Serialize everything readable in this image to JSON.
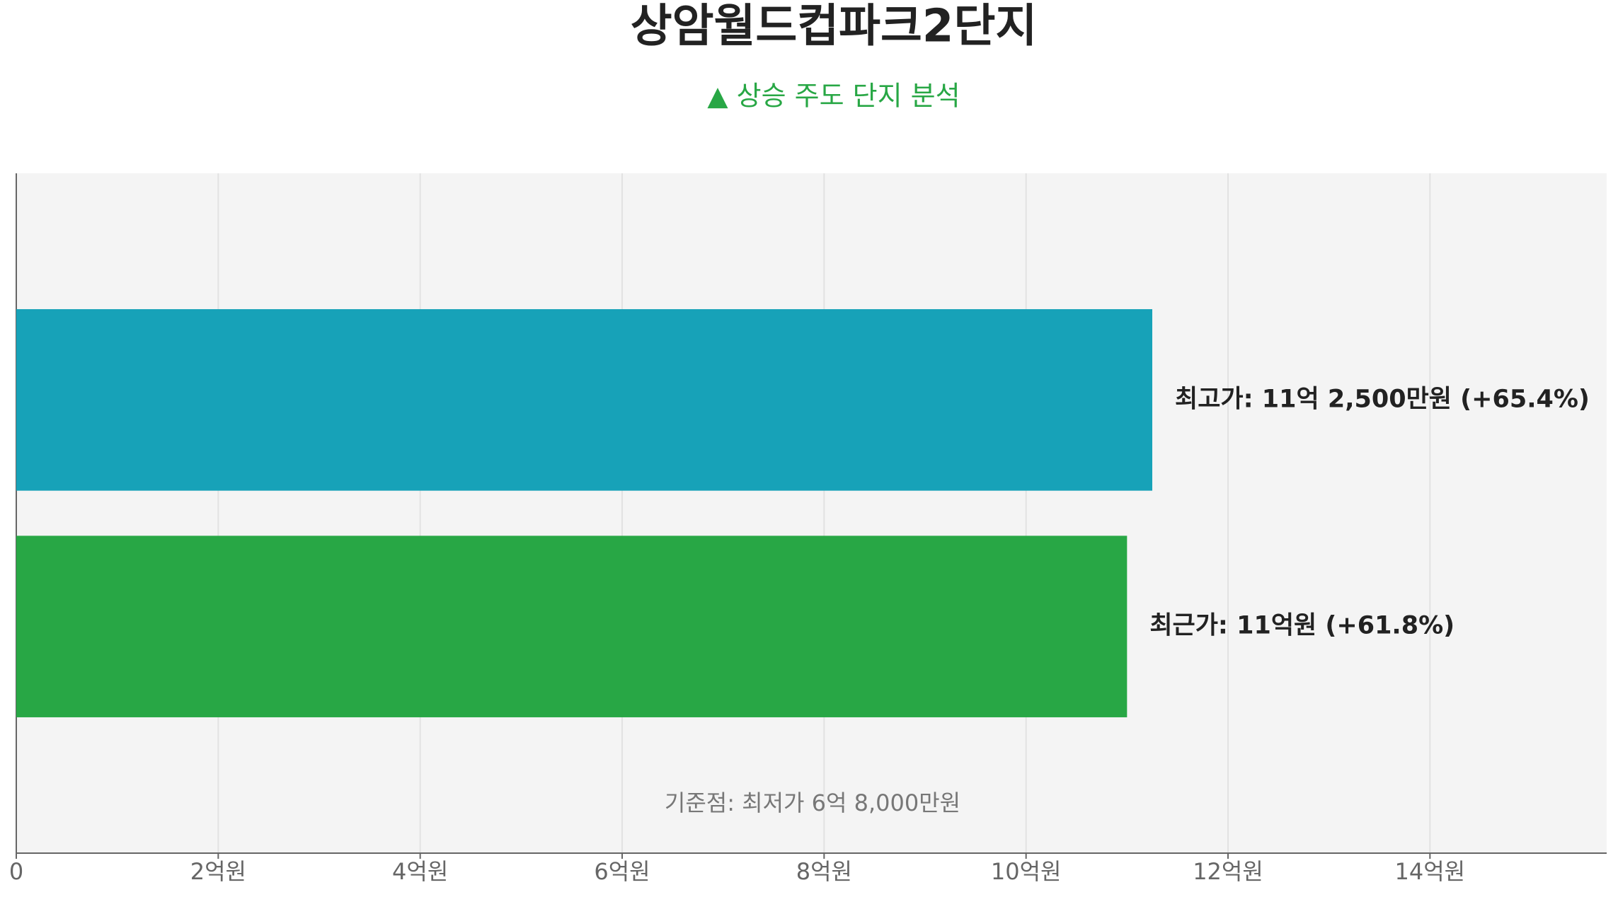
{
  "chart_data": {
    "type": "hbar",
    "title": "상암월드컵파크2단지",
    "subtitle": "▲ 상승 주도 단지 분석",
    "values": [
      11.25,
      11
    ],
    "value_labels": [
      "최고가: 11억 2,500만원 (+65.4%)",
      "최근가: 11억원 (+61.8%)"
    ],
    "colors": [
      "#17a2b8",
      "#28a745"
    ],
    "annotation": "기준점: 최저가 6억 8,000만원",
    "xlim": [
      0,
      15.75
    ],
    "xticks": [
      0,
      {
        "value": 2,
        "label": "2억원"
      },
      {
        "value": 4,
        "label": "4억원"
      },
      {
        "value": 6,
        "label": "6억원"
      },
      {
        "value": 8,
        "label": "8억원"
      },
      {
        "value": 10,
        "label": "10억원"
      },
      {
        "value": 12,
        "label": "12억원"
      },
      {
        "value": 14,
        "label": "14억원"
      }
    ],
    "grid": true
  }
}
